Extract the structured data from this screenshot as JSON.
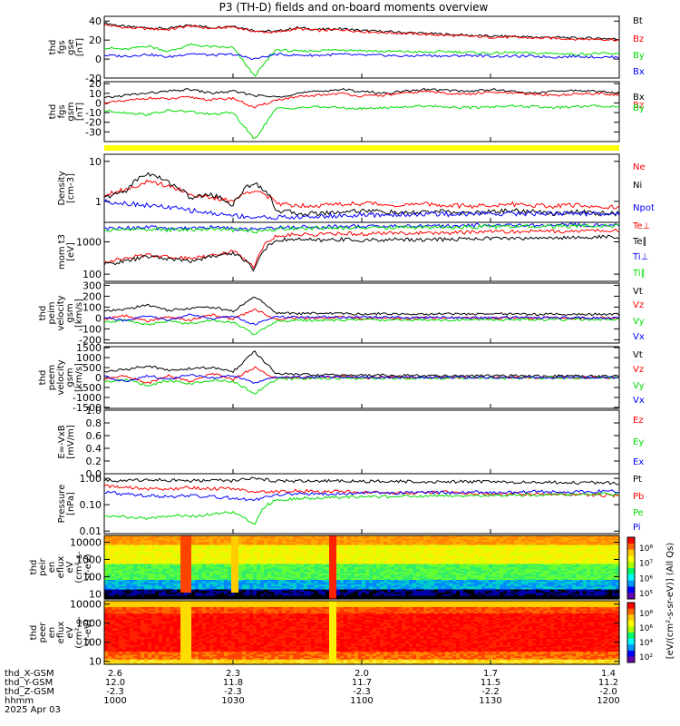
{
  "title": "P3 (TH-D) fields and on-board moments overview",
  "colors": {
    "black": "#000000",
    "red": "#ff0000",
    "green": "#00dd00",
    "blue": "#0000ff",
    "yellow": "#ffff00",
    "panel_bg": "#ffffff"
  },
  "chart_data": [
    {
      "type": "line",
      "id": "fgs_gse",
      "ylabel_lines": [
        "thd",
        "fgs",
        "gse",
        "[nT]"
      ],
      "ylim": [
        -20,
        45
      ],
      "yticks": [
        -20,
        0,
        20,
        40
      ],
      "yscale": "linear",
      "series": [
        {
          "name": "Bt",
          "color": "black",
          "values": [
            38,
            34,
            33,
            32,
            36,
            33,
            35,
            30,
            29,
            33,
            31,
            32,
            30,
            29,
            28,
            27,
            26,
            25,
            24,
            24,
            23,
            23,
            22,
            22,
            21
          ]
        },
        {
          "name": "Bz",
          "color": "red",
          "values": [
            36,
            33,
            32,
            31,
            35,
            32,
            34,
            29,
            28,
            32,
            30,
            31,
            29,
            28,
            27,
            26,
            25,
            24,
            23,
            23,
            22,
            22,
            21,
            21,
            20
          ]
        },
        {
          "name": "By",
          "color": "green",
          "values": [
            12,
            10,
            14,
            8,
            15,
            13,
            12,
            -18,
            10,
            8,
            9,
            10,
            9,
            8,
            8,
            7,
            8,
            7,
            6,
            7,
            6,
            6,
            5,
            6,
            5
          ]
        },
        {
          "name": "Bx",
          "color": "blue",
          "values": [
            4,
            3,
            5,
            2,
            6,
            4,
            5,
            0,
            5,
            4,
            4,
            5,
            4,
            4,
            3,
            4,
            3,
            4,
            3,
            3,
            3,
            2,
            3,
            2,
            2
          ]
        }
      ]
    },
    {
      "type": "line",
      "id": "fgs_gsm",
      "ylabel_lines": [
        "thd",
        "fgs",
        "gsm",
        "[nT]"
      ],
      "ylim": [
        -40,
        22
      ],
      "yticks": [
        -30,
        -20,
        -10,
        0,
        10,
        20
      ],
      "yscale": "linear",
      "series": [
        {
          "name": "Bx",
          "color": "black",
          "values": [
            5,
            8,
            10,
            12,
            14,
            10,
            12,
            8,
            6,
            10,
            12,
            14,
            12,
            10,
            12,
            14,
            13,
            12,
            14,
            12,
            10,
            12,
            13,
            12,
            10
          ]
        },
        {
          "name": "Bz",
          "color": "red",
          "values": [
            0,
            2,
            5,
            4,
            6,
            3,
            5,
            -5,
            3,
            6,
            8,
            10,
            7,
            8,
            10,
            12,
            10,
            9,
            11,
            10,
            9,
            8,
            9,
            10,
            8
          ]
        },
        {
          "name": "By",
          "color": "green",
          "values": [
            -8,
            -10,
            -12,
            -8,
            -9,
            -12,
            -10,
            -38,
            -6,
            -5,
            -4,
            -5,
            -6,
            -5,
            -4,
            -3,
            -4,
            -5,
            -4,
            -3,
            -4,
            -5,
            -4,
            -3,
            -4
          ]
        }
      ]
    },
    {
      "type": "line",
      "id": "density",
      "ylabel_lines": [
        "Density",
        "[cm-3]"
      ],
      "ylim": [
        0.3,
        15
      ],
      "yticks": [
        1,
        10
      ],
      "yscale": "log",
      "series": [
        {
          "name": "Ne",
          "color": "red",
          "values": [
            1.5,
            2.0,
            3.0,
            2.5,
            1.5,
            1.2,
            1.0,
            2.0,
            0.9,
            0.8,
            0.8,
            0.85,
            0.9,
            0.85,
            0.8,
            0.85,
            0.8,
            0.75,
            0.8,
            0.85,
            0.8,
            0.75,
            0.8,
            0.75,
            0.7
          ]
        },
        {
          "name": "Ni",
          "color": "black",
          "values": [
            1.2,
            1.8,
            5.0,
            3.0,
            1.2,
            1.5,
            0.8,
            3.0,
            0.6,
            0.5,
            0.5,
            0.55,
            0.6,
            0.55,
            0.5,
            0.55,
            0.55,
            0.5,
            0.55,
            0.6,
            0.55,
            0.5,
            0.55,
            0.5,
            0.5
          ]
        },
        {
          "name": "Npot",
          "color": "blue",
          "values": [
            1.0,
            0.9,
            0.8,
            0.7,
            0.6,
            0.5,
            0.45,
            0.4,
            0.4,
            0.4,
            0.42,
            0.44,
            0.45,
            0.46,
            0.47,
            0.48,
            0.48,
            0.49,
            0.5,
            0.5,
            0.5,
            0.5,
            0.5,
            0.5,
            0.5
          ]
        }
      ]
    },
    {
      "type": "line",
      "id": "temperature",
      "ylabel_lines": [
        "mom t3",
        "[eV]"
      ],
      "ylim": [
        60,
        4000
      ],
      "yticks": [
        100,
        1000
      ],
      "yscale": "log",
      "series": [
        {
          "name": "Te⊥",
          "color": "red",
          "values": [
            250,
            300,
            400,
            350,
            300,
            400,
            500,
            150,
            1500,
            1700,
            1700,
            1800,
            1750,
            1800,
            1900,
            1850,
            1900,
            2000,
            2100,
            2050,
            2100,
            2150,
            2150,
            2200,
            2200
          ]
        },
        {
          "name": "Te∥",
          "color": "black",
          "values": [
            200,
            250,
            350,
            300,
            250,
            350,
            450,
            120,
            1100,
            1200,
            1100,
            1200,
            1100,
            1150,
            1200,
            1150,
            1200,
            1250,
            1300,
            1250,
            1300,
            1350,
            1350,
            1400,
            1400
          ]
        },
        {
          "name": "Ti⊥",
          "color": "blue",
          "values": [
            2500,
            2700,
            2800,
            2600,
            2700,
            2800,
            2600,
            2400,
            2800,
            2900,
            2900,
            3000,
            3000,
            3000,
            3100,
            3100,
            3100,
            3200,
            3200,
            3200,
            3300,
            3300,
            3300,
            3300,
            3400
          ]
        },
        {
          "name": "Ti∥",
          "color": "green",
          "values": [
            2200,
            2400,
            2500,
            2300,
            2400,
            2500,
            2300,
            2100,
            2500,
            2600,
            2600,
            2700,
            2700,
            2700,
            2800,
            2800,
            2800,
            2900,
            2900,
            2900,
            3000,
            3000,
            3000,
            3000,
            3100
          ]
        }
      ]
    },
    {
      "type": "line",
      "id": "peim_velocity",
      "ylabel_lines": [
        "thd",
        "peim",
        "velocity",
        "gsm",
        "[km/s]"
      ],
      "ylim": [
        -230,
        320
      ],
      "yticks": [
        -200,
        -100,
        0,
        100,
        200,
        300
      ],
      "yscale": "linear",
      "series": [
        {
          "name": "Vt",
          "color": "black",
          "values": [
            60,
            80,
            120,
            70,
            90,
            100,
            60,
            200,
            50,
            40,
            45,
            40,
            35,
            40,
            38,
            36,
            40,
            35,
            38,
            36,
            34,
            35,
            33,
            34,
            32
          ]
        },
        {
          "name": "Vz",
          "color": "red",
          "values": [
            -10,
            20,
            -30,
            10,
            -20,
            30,
            -10,
            80,
            -10,
            5,
            -5,
            10,
            -5,
            5,
            -5,
            3,
            -4,
            4,
            -3,
            2,
            -2,
            3,
            -2,
            2,
            -1
          ]
        },
        {
          "name": "Vy",
          "color": "green",
          "values": [
            -40,
            -20,
            -60,
            -30,
            -50,
            -20,
            -40,
            -150,
            -30,
            -20,
            -25,
            -20,
            -15,
            -20,
            -18,
            -15,
            -20,
            -15,
            -18,
            -16,
            -14,
            -15,
            -13,
            -14,
            -12
          ]
        },
        {
          "name": "Vx",
          "color": "blue",
          "values": [
            10,
            -30,
            20,
            -20,
            30,
            -10,
            20,
            -60,
            10,
            5,
            10,
            5,
            8,
            5,
            6,
            4,
            5,
            3,
            4,
            3,
            2,
            3,
            2,
            1,
            2
          ]
        }
      ]
    },
    {
      "type": "line",
      "id": "peem_velocity",
      "ylabel_lines": [
        "thd",
        "peem",
        "velocity",
        "gsm",
        "[km/s]"
      ],
      "ylim": [
        -1550,
        1550
      ],
      "yticks": [
        -1500,
        -1000,
        -500,
        0,
        500,
        1000,
        1500
      ],
      "yscale": "linear",
      "series": [
        {
          "name": "Vt",
          "color": "black",
          "values": [
            300,
            400,
            600,
            350,
            450,
            500,
            300,
            1300,
            200,
            150,
            120,
            130,
            110,
            120,
            100,
            90,
            100,
            90,
            80,
            90,
            70,
            80,
            70,
            60,
            60
          ]
        },
        {
          "name": "Vz",
          "color": "red",
          "values": [
            -100,
            100,
            -300,
            80,
            -200,
            200,
            -100,
            500,
            -50,
            30,
            -20,
            40,
            -30,
            20,
            -10,
            10,
            -10,
            10,
            -5,
            5,
            -5,
            5,
            -3,
            3,
            -2
          ]
        },
        {
          "name": "Vy",
          "color": "green",
          "values": [
            -200,
            -100,
            -400,
            -150,
            -300,
            -150,
            -200,
            -800,
            -100,
            -50,
            -60,
            -40,
            -50,
            -40,
            -30,
            -30,
            -20,
            -20,
            -20,
            -15,
            -15,
            -10,
            -10,
            -10,
            -5
          ]
        },
        {
          "name": "Vx",
          "color": "blue",
          "values": [
            50,
            -200,
            100,
            -100,
            150,
            -50,
            100,
            -300,
            50,
            20,
            30,
            20,
            10,
            20,
            10,
            5,
            10,
            5,
            5,
            3,
            3,
            2,
            2,
            1,
            1
          ]
        }
      ]
    },
    {
      "type": "line",
      "id": "efield",
      "ylabel_lines": [
        "E=-VxB",
        "[mV/m]"
      ],
      "ylim": [
        0,
        1.0
      ],
      "yticks": [
        0.0,
        0.2,
        0.4,
        0.6,
        0.8,
        1.0
      ],
      "yticks_text": [
        "0.0",
        "0.2",
        "0.4",
        "0.6",
        "0.8",
        "1.0"
      ],
      "yscale": "linear",
      "series": [
        {
          "name": "Ez",
          "color": "red",
          "values": []
        },
        {
          "name": "Ey",
          "color": "green",
          "values": []
        },
        {
          "name": "Ex",
          "color": "blue",
          "values": []
        }
      ]
    },
    {
      "type": "line",
      "id": "pressure",
      "ylabel_lines": [
        "Pressure",
        "[nPa]"
      ],
      "ylim": [
        0.008,
        1.5
      ],
      "yticks": [
        0.01,
        0.1,
        1
      ],
      "yticks_text": [
        "0.01",
        "0.10",
        "1.00"
      ],
      "yscale": "log",
      "series": [
        {
          "name": "Pt",
          "color": "black",
          "values": [
            0.85,
            0.8,
            0.9,
            0.85,
            0.8,
            0.85,
            0.8,
            1.0,
            0.8,
            0.78,
            0.78,
            0.8,
            0.75,
            0.78,
            0.75,
            0.74,
            0.75,
            0.73,
            0.74,
            0.72,
            0.72,
            0.7,
            0.7,
            0.68,
            0.66
          ]
        },
        {
          "name": "Pb",
          "color": "red",
          "values": [
            0.5,
            0.45,
            0.4,
            0.38,
            0.45,
            0.4,
            0.42,
            0.3,
            0.3,
            0.35,
            0.3,
            0.32,
            0.3,
            0.28,
            0.27,
            0.3,
            0.3,
            0.26,
            0.25,
            0.26,
            0.25,
            0.25,
            0.24,
            0.23,
            0.22
          ]
        },
        {
          "name": "Pe",
          "color": "green",
          "values": [
            0.04,
            0.035,
            0.03,
            0.04,
            0.035,
            0.045,
            0.05,
            0.015,
            0.15,
            0.17,
            0.18,
            0.19,
            0.2,
            0.2,
            0.21,
            0.21,
            0.22,
            0.22,
            0.23,
            0.23,
            0.24,
            0.24,
            0.24,
            0.25,
            0.25
          ]
        },
        {
          "name": "Pi",
          "color": "blue",
          "values": [
            0.3,
            0.25,
            0.22,
            0.2,
            0.22,
            0.2,
            0.18,
            0.15,
            0.25,
            0.26,
            0.26,
            0.27,
            0.27,
            0.28,
            0.28,
            0.29,
            0.29,
            0.3,
            0.3,
            0.3,
            0.31,
            0.31,
            0.31,
            0.32,
            0.32
          ]
        }
      ]
    },
    {
      "type": "heatmap",
      "id": "peir_spec",
      "ylabel_lines": [
        "thd",
        "peir",
        "en",
        "eflux",
        "eV",
        "(cm²-s-",
        "sr-eV)"
      ],
      "ylim": [
        5,
        25000
      ],
      "yticks": [
        10,
        100,
        1000,
        10000
      ],
      "yticks_text": [
        "10",
        "100",
        "1000",
        "10000"
      ],
      "yscale": "log"
    },
    {
      "type": "heatmap",
      "id": "peer_spec",
      "ylabel_lines": [
        "thd",
        "peer",
        "en",
        "eflux",
        "eV",
        "(cm²-s-",
        "sr-eV)"
      ],
      "ylim": [
        7,
        15000
      ],
      "yticks": [
        10,
        100,
        1000,
        10000
      ],
      "yticks_text": [
        "10",
        "100",
        "1000",
        "10000"
      ],
      "yscale": "log"
    }
  ],
  "colorbar": {
    "label": "[eV/(cm²-s-sr-eV)] (All Qs)",
    "upper_ticks": [
      "10⁸",
      "10⁷",
      "10⁶",
      "10⁵"
    ],
    "lower_ticks": [
      "10⁸",
      "10⁶",
      "10⁴",
      "10²"
    ]
  },
  "footer": {
    "row_labels": [
      "thd_X-GSM",
      "thd_Y-GSM",
      "thd_Z-GSM",
      "hhmm",
      "2025 Apr 03"
    ],
    "columns": [
      {
        "values": [
          "2.6",
          "12.0",
          "-2.3",
          "1000"
        ]
      },
      {
        "values": [
          "2.3",
          "11.8",
          "-2.3",
          "1030"
        ]
      },
      {
        "values": [
          "2.0",
          "11.7",
          "-2.3",
          "1100"
        ]
      },
      {
        "values": [
          "1.7",
          "11.5",
          "-2.2",
          "1130"
        ]
      },
      {
        "values": [
          "1.4",
          "11.2",
          "-2.0",
          "1200"
        ]
      }
    ]
  }
}
